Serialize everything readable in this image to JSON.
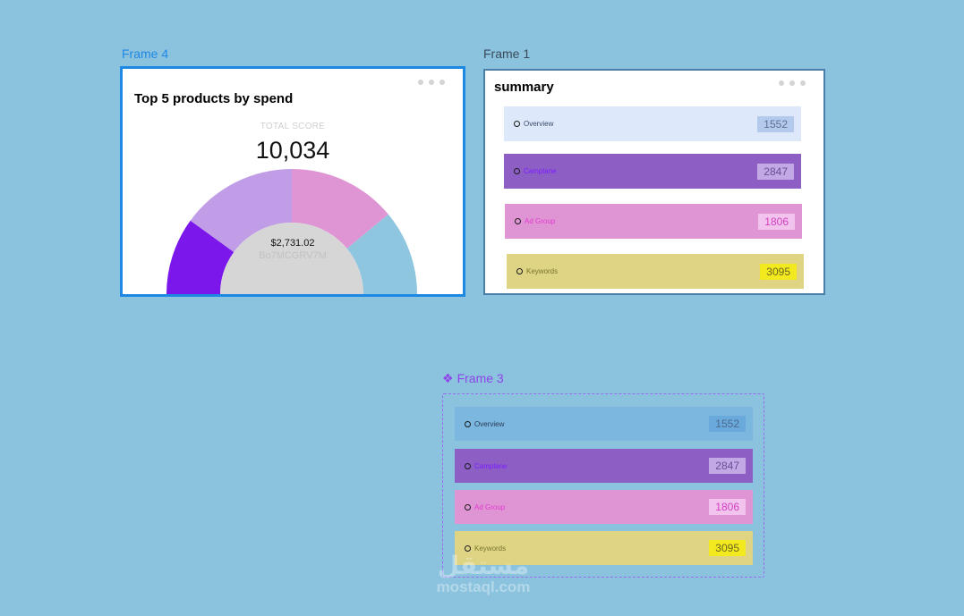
{
  "canvas": {
    "background": "#8bc3de"
  },
  "frames": {
    "frame4": {
      "label": "Frame 4",
      "title": "Top 5 products by spend",
      "score_label": "TOTAL SCORE",
      "score_value": "10,034",
      "center_amount": "$2,731.02",
      "center_id": "Bo7MCGRV7M",
      "menu_icon": "more-dots-icon",
      "segments": [
        {
          "color": "#7b17eb",
          "share": 0.2
        },
        {
          "color": "#c09de6",
          "share": 0.3
        },
        {
          "color": "#df95d4",
          "share": 0.28
        },
        {
          "color": "#8ec6df",
          "share": 0.22
        }
      ]
    },
    "frame1": {
      "label": "Frame 1",
      "title": "summary",
      "menu_icon": "more-dots-icon",
      "rows": [
        {
          "label": "Overview",
          "value": "1552",
          "bg": "#dde8fa",
          "label_color": "#3a4a6a",
          "value_bg": "#b4caec",
          "value_color": "#5a6f95"
        },
        {
          "label": "Camplane",
          "value": "2847",
          "bg": "#8d5fc4",
          "label_color": "#7c1dff",
          "value_bg": "#c2a8e4",
          "value_color": "#6a4d94"
        },
        {
          "label": "Ad Group",
          "value": "1806",
          "bg": "#df95d4",
          "label_color": "#e33ad0",
          "value_bg": "#f2c3ec",
          "value_color": "#d23fc3"
        },
        {
          "label": "Keywords",
          "value": "3095",
          "bg": "#ded484",
          "label_color": "#7a742c",
          "value_bg": "#f2ea1f",
          "value_color": "#6b661e"
        }
      ]
    },
    "frame3": {
      "label": "Frame 3",
      "icon": "component-icon",
      "rows": [
        {
          "label": "Overview",
          "value": "1552",
          "bg": "#7cb7e0",
          "label_color": "#2a3a55",
          "value_bg": "#6aa9dc",
          "value_color": "#4a6a8e"
        },
        {
          "label": "Camplane",
          "value": "2847",
          "bg": "#8d5fc4",
          "label_color": "#7c1dff",
          "value_bg": "#c2a8e4",
          "value_color": "#6a4d94"
        },
        {
          "label": "Ad Group",
          "value": "1806",
          "bg": "#df95d4",
          "label_color": "#e33ad0",
          "value_bg": "#f2c3ec",
          "value_color": "#d23fc3"
        },
        {
          "label": "Keywords",
          "value": "3095",
          "bg": "#ded484",
          "label_color": "#7a742c",
          "value_bg": "#f2ea1f",
          "value_color": "#6b661e"
        }
      ]
    }
  },
  "watermark": {
    "arabic": "مستقل",
    "latin": "mostaql.com"
  }
}
